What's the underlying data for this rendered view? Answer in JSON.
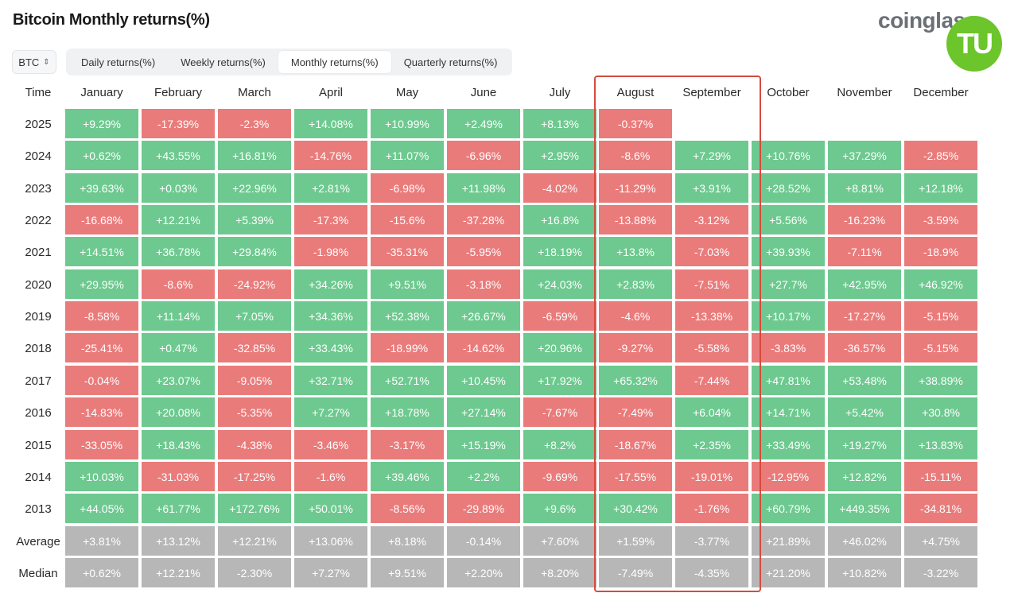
{
  "title": "Bitcoin Monthly returns(%)",
  "brand": "coinglass",
  "watermark": "TU",
  "asset_select": {
    "value": "BTC",
    "icon": "chevron-updown-icon"
  },
  "tabs": [
    {
      "label": "Daily returns(%)",
      "active": false
    },
    {
      "label": "Weekly returns(%)",
      "active": false
    },
    {
      "label": "Monthly returns(%)",
      "active": true
    },
    {
      "label": "Quarterly returns(%)",
      "active": false
    }
  ],
  "colors": {
    "positive": "#6dc98f",
    "negative": "#ea7b7b",
    "summary": "#b7b7b7",
    "highlight": "#d64a3f",
    "brand_badge": "#6cc52b"
  },
  "table": {
    "headers": [
      "Time",
      "January",
      "February",
      "March",
      "April",
      "May",
      "June",
      "July",
      "August",
      "September",
      "October",
      "November",
      "December"
    ],
    "rows": [
      {
        "label": "2025",
        "cells": [
          "+9.29%",
          "-17.39%",
          "-2.3%",
          "+14.08%",
          "+10.99%",
          "+2.49%",
          "+8.13%",
          "-0.37%",
          "",
          "",
          "",
          ""
        ]
      },
      {
        "label": "2024",
        "cells": [
          "+0.62%",
          "+43.55%",
          "+16.81%",
          "-14.76%",
          "+11.07%",
          "-6.96%",
          "+2.95%",
          "-8.6%",
          "+7.29%",
          "+10.76%",
          "+37.29%",
          "-2.85%"
        ]
      },
      {
        "label": "2023",
        "cells": [
          "+39.63%",
          "+0.03%",
          "+22.96%",
          "+2.81%",
          "-6.98%",
          "+11.98%",
          "-4.02%",
          "-11.29%",
          "+3.91%",
          "+28.52%",
          "+8.81%",
          "+12.18%"
        ]
      },
      {
        "label": "2022",
        "cells": [
          "-16.68%",
          "+12.21%",
          "+5.39%",
          "-17.3%",
          "-15.6%",
          "-37.28%",
          "+16.8%",
          "-13.88%",
          "-3.12%",
          "+5.56%",
          "-16.23%",
          "-3.59%"
        ]
      },
      {
        "label": "2021",
        "cells": [
          "+14.51%",
          "+36.78%",
          "+29.84%",
          "-1.98%",
          "-35.31%",
          "-5.95%",
          "+18.19%",
          "+13.8%",
          "-7.03%",
          "+39.93%",
          "-7.11%",
          "-18.9%"
        ]
      },
      {
        "label": "2020",
        "cells": [
          "+29.95%",
          "-8.6%",
          "-24.92%",
          "+34.26%",
          "+9.51%",
          "-3.18%",
          "+24.03%",
          "+2.83%",
          "-7.51%",
          "+27.7%",
          "+42.95%",
          "+46.92%"
        ]
      },
      {
        "label": "2019",
        "cells": [
          "-8.58%",
          "+11.14%",
          "+7.05%",
          "+34.36%",
          "+52.38%",
          "+26.67%",
          "-6.59%",
          "-4.6%",
          "-13.38%",
          "+10.17%",
          "-17.27%",
          "-5.15%"
        ]
      },
      {
        "label": "2018",
        "cells": [
          "-25.41%",
          "+0.47%",
          "-32.85%",
          "+33.43%",
          "-18.99%",
          "-14.62%",
          "+20.96%",
          "-9.27%",
          "-5.58%",
          "-3.83%",
          "-36.57%",
          "-5.15%"
        ]
      },
      {
        "label": "2017",
        "cells": [
          "-0.04%",
          "+23.07%",
          "-9.05%",
          "+32.71%",
          "+52.71%",
          "+10.45%",
          "+17.92%",
          "+65.32%",
          "-7.44%",
          "+47.81%",
          "+53.48%",
          "+38.89%"
        ]
      },
      {
        "label": "2016",
        "cells": [
          "-14.83%",
          "+20.08%",
          "-5.35%",
          "+7.27%",
          "+18.78%",
          "+27.14%",
          "-7.67%",
          "-7.49%",
          "+6.04%",
          "+14.71%",
          "+5.42%",
          "+30.8%"
        ]
      },
      {
        "label": "2015",
        "cells": [
          "-33.05%",
          "+18.43%",
          "-4.38%",
          "-3.46%",
          "-3.17%",
          "+15.19%",
          "+8.2%",
          "-18.67%",
          "+2.35%",
          "+33.49%",
          "+19.27%",
          "+13.83%"
        ]
      },
      {
        "label": "2014",
        "cells": [
          "+10.03%",
          "-31.03%",
          "-17.25%",
          "-1.6%",
          "+39.46%",
          "+2.2%",
          "-9.69%",
          "-17.55%",
          "-19.01%",
          "-12.95%",
          "+12.82%",
          "-15.11%"
        ]
      },
      {
        "label": "2013",
        "cells": [
          "+44.05%",
          "+61.77%",
          "+172.76%",
          "+50.01%",
          "-8.56%",
          "-29.89%",
          "+9.6%",
          "+30.42%",
          "-1.76%",
          "+60.79%",
          "+449.35%",
          "-34.81%"
        ]
      }
    ],
    "summary": [
      {
        "label": "Average",
        "cells": [
          "+3.81%",
          "+13.12%",
          "+12.21%",
          "+13.06%",
          "+8.18%",
          "-0.14%",
          "+7.60%",
          "+1.59%",
          "-3.77%",
          "+21.89%",
          "+46.02%",
          "+4.75%"
        ]
      },
      {
        "label": "Median",
        "cells": [
          "+0.62%",
          "+12.21%",
          "-2.30%",
          "+7.27%",
          "+9.51%",
          "+2.20%",
          "+8.20%",
          "-7.49%",
          "-4.35%",
          "+21.20%",
          "+10.82%",
          "-3.22%"
        ]
      }
    ],
    "highlighted_columns": [
      "August",
      "September"
    ]
  }
}
